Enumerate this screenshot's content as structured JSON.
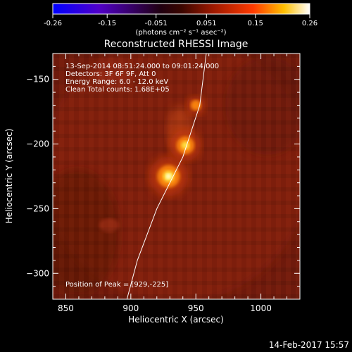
{
  "colorbar": {
    "ticks": [
      "-0.26",
      "-0.15",
      "-0.051",
      "0.051",
      "0.15",
      "0.26"
    ],
    "tick_values": [
      -0.26,
      -0.15,
      -0.051,
      0.051,
      0.15,
      0.26
    ],
    "range": [
      -0.26,
      0.26
    ],
    "units": "(photons cm⁻² s⁻¹ asec⁻²)",
    "colormap": [
      "#0000ff",
      "#5000c8",
      "#000000",
      "#8a1e00",
      "#ff3000",
      "#ffd000",
      "#ffffff"
    ]
  },
  "header": {
    "line1": "13-Sep-2014 08:51:24.000 to 09:01:24.000",
    "line2": "Detectors: 3F 6F 9F, Att 0",
    "line3": "Energy Range: 6.0 - 12.0 keV",
    "line4": "Clean    Total counts: 1.68E+05"
  },
  "peak_label": "Position of Peak = [929,-225]",
  "timestamp": "14-Feb-2017 15:57",
  "chart_data": {
    "type": "heatmap",
    "title": "Reconstructed RHESSI Image",
    "xlabel": "Heliocentric X (arcsec)",
    "ylabel": "Heliocentric Y (arcsec)",
    "xlim": [
      840,
      1030
    ],
    "ylim": [
      -320,
      -130
    ],
    "xticks": [
      850,
      900,
      950,
      1000
    ],
    "yticks": [
      -150,
      -200,
      -250,
      -300
    ],
    "peak": {
      "x": 929,
      "y": -225
    },
    "sources": [
      {
        "x": 929,
        "y": -225,
        "intensity": 0.26
      },
      {
        "x": 942,
        "y": -201,
        "intensity": 0.19
      },
      {
        "x": 950,
        "y": -170,
        "intensity": 0.09
      }
    ],
    "limb": [
      [
        958,
        -130
      ],
      [
        953,
        -170
      ],
      [
        940,
        -210
      ],
      [
        920,
        -250
      ],
      [
        905,
        -290
      ],
      [
        897,
        -320
      ]
    ]
  }
}
